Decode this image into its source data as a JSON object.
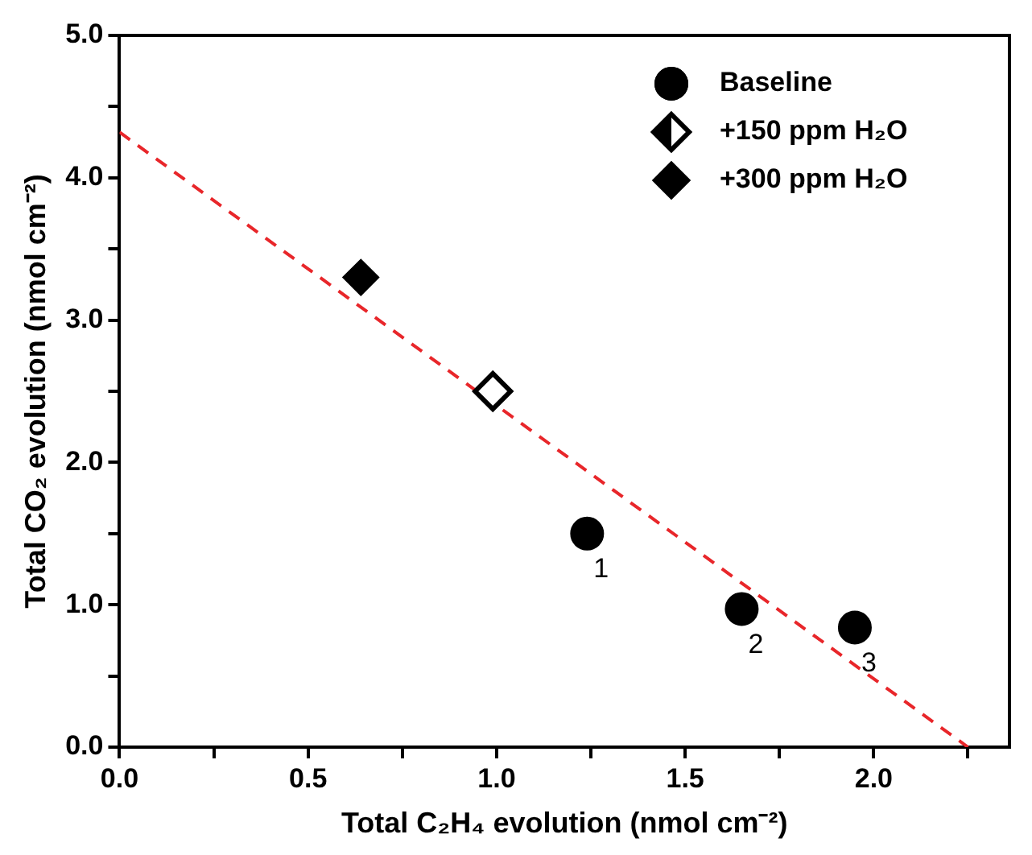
{
  "chart_data": {
    "type": "scatter",
    "xlabel": "Total C₂H₄ evolution (nmol cm⁻²)",
    "ylabel": "Total CO₂ evolution (nmol cm⁻²)",
    "xlim": [
      0,
      2.36
    ],
    "ylim": [
      0,
      5
    ],
    "xticks": [
      {
        "value": 0,
        "label": "0.0"
      },
      {
        "value": 0.25,
        "label": null
      },
      {
        "value": 0.5,
        "label": "0.5"
      },
      {
        "value": 0.75,
        "label": null
      },
      {
        "value": 1,
        "label": "1.0"
      },
      {
        "value": 1.25,
        "label": null
      },
      {
        "value": 1.5,
        "label": "1.5"
      },
      {
        "value": 1.75,
        "label": null
      },
      {
        "value": 2,
        "label": "2.0"
      },
      {
        "value": 2.25,
        "label": null
      }
    ],
    "yticks": [
      {
        "value": 0,
        "label": "0.0"
      },
      {
        "value": 0.5,
        "label": null
      },
      {
        "value": 1,
        "label": "1.0"
      },
      {
        "value": 1.5,
        "label": null
      },
      {
        "value": 2,
        "label": "2.0"
      },
      {
        "value": 2.5,
        "label": null
      },
      {
        "value": 3,
        "label": "3.0"
      },
      {
        "value": 3.5,
        "label": null
      },
      {
        "value": 4,
        "label": "4.0"
      },
      {
        "value": 4.5,
        "label": null
      },
      {
        "value": 5,
        "label": "5.0"
      }
    ],
    "grid": false,
    "legend": "top right",
    "series": [
      {
        "name": "Baseline",
        "color": "#000000",
        "marker": "circle",
        "x": [
          1.24,
          1.65,
          1.95
        ],
        "values": [
          1.5,
          0.97,
          0.84
        ]
      },
      {
        "name": "+150 ppm H₂O",
        "color": "#000000",
        "marker": "diamond",
        "x": [
          0.99
        ],
        "values": [
          2.5
        ]
      },
      {
        "name": "+300 ppm H₂O",
        "color": "#000000",
        "marker": "diamond",
        "x": [
          0.64
        ],
        "values": [
          3.3
        ]
      },
      {
        "type": "line",
        "color": "#e8262a",
        "line_style": "dashed",
        "marker": "none",
        "x": [
          0,
          2.25
        ],
        "values": [
          4.32,
          0
        ]
      }
    ],
    "annotations": [
      {
        "text": "1",
        "x": 1.24,
        "y": 1.5
      },
      {
        "text": "2",
        "x": 1.65,
        "y": 0.97
      },
      {
        "text": "3",
        "x": 1.95,
        "y": 0.84
      }
    ]
  }
}
